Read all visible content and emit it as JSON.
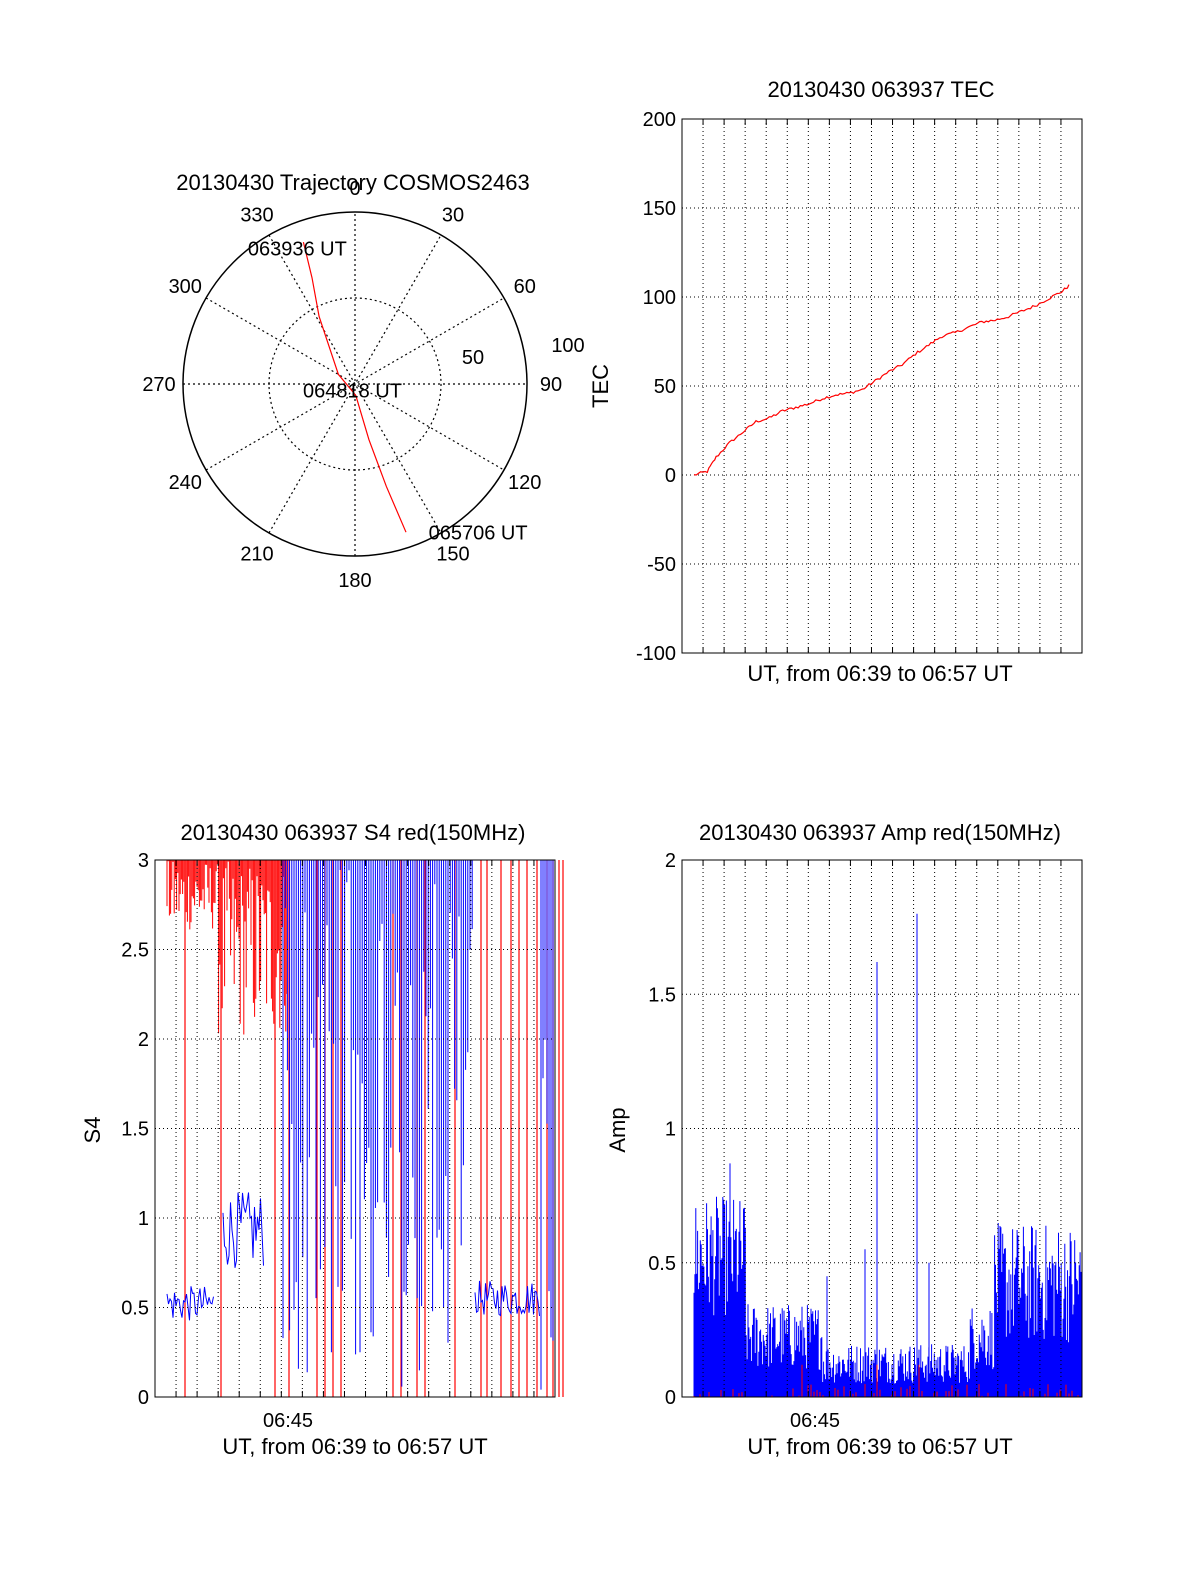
{
  "colors": {
    "red": "#ff0000",
    "blue": "#0000ff",
    "axis": "#000000",
    "grid": "#000000"
  },
  "chart_data": [
    {
      "id": "trajectory",
      "type": "polar",
      "title": "20130430 Trajectory COSMOS2463",
      "azimuth_labels": [
        "0",
        "30",
        "60",
        "90",
        "120",
        "150",
        "180",
        "210",
        "240",
        "270",
        "300",
        "330"
      ],
      "radial_labels": [
        "50",
        "100"
      ],
      "grid": true,
      "series": [
        {
          "color": "red",
          "points": [
            {
              "az": 340,
              "el": 11
            },
            {
              "az": 338,
              "el": 30
            },
            {
              "az": 332,
              "el": 50
            },
            {
              "az": 300,
              "el": 80
            },
            {
              "az": 176,
              "el": 84
            },
            {
              "az": 166,
              "el": 60
            },
            {
              "az": 163,
              "el": 34
            },
            {
              "az": 161,
              "el": 8
            }
          ]
        }
      ],
      "annotations": [
        {
          "text": "063936 UT",
          "az": 338,
          "el": 13
        },
        {
          "text": "064818 UT",
          "az": 180,
          "el": 87
        },
        {
          "text": "065706 UT",
          "az": 160,
          "el": 8
        }
      ]
    },
    {
      "id": "tec",
      "type": "line",
      "title": "20130430 063937 TEC",
      "xlabel": "UT, from 06:39 to 06:57 UT",
      "ylabel": "TEC",
      "ylim": [
        -100,
        200
      ],
      "yticks": [
        "-100",
        "-50",
        "0",
        "50",
        "100",
        "150",
        "200"
      ],
      "grid": true,
      "series": [
        {
          "color": "red",
          "points": [
            [
              0.0,
              0
            ],
            [
              0.03,
              2
            ],
            [
              0.05,
              10
            ],
            [
              0.08,
              18
            ],
            [
              0.11,
              24
            ],
            [
              0.14,
              30
            ],
            [
              0.17,
              32
            ],
            [
              0.2,
              36
            ],
            [
              0.23,
              38
            ],
            [
              0.26,
              40
            ],
            [
              0.29,
              43
            ],
            [
              0.32,
              45
            ],
            [
              0.35,
              46
            ],
            [
              0.38,
              48
            ],
            [
              0.41,
              53
            ],
            [
              0.44,
              58
            ],
            [
              0.47,
              62
            ],
            [
              0.5,
              68
            ],
            [
              0.53,
              73
            ],
            [
              0.56,
              78
            ],
            [
              0.59,
              80
            ],
            [
              0.62,
              83
            ],
            [
              0.65,
              86
            ],
            [
              0.68,
              87
            ],
            [
              0.71,
              89
            ],
            [
              0.74,
              92
            ],
            [
              0.77,
              95
            ],
            [
              0.8,
              99
            ],
            [
              0.83,
              103
            ],
            [
              0.85,
              107
            ]
          ]
        }
      ]
    },
    {
      "id": "s4",
      "type": "line",
      "title": "20130430 063937 S4 red(150MHz)",
      "xlabel": "UT, from 06:39 to 06:57 UT",
      "ylabel": "S4",
      "ylim": [
        0,
        3
      ],
      "yticks": [
        "0",
        "0.5",
        "1",
        "1.5",
        "2",
        "2.5",
        "3"
      ],
      "xtick_label": "06:45",
      "grid": true,
      "series": [
        {
          "name": "red",
          "color": "red"
        },
        {
          "name": "blue",
          "color": "blue"
        }
      ]
    },
    {
      "id": "amp",
      "type": "line",
      "title": "20130430 063937 Amp red(150MHz)",
      "xlabel": "UT, from 06:39 to 06:57 UT",
      "ylabel": "Amp",
      "ylim": [
        0,
        2
      ],
      "yticks": [
        "0",
        "0.5",
        "1",
        "1.5",
        "2"
      ],
      "xtick_label": "06:45",
      "grid": true,
      "series": [
        {
          "name": "blue",
          "color": "blue"
        },
        {
          "name": "red",
          "color": "red"
        }
      ]
    }
  ]
}
